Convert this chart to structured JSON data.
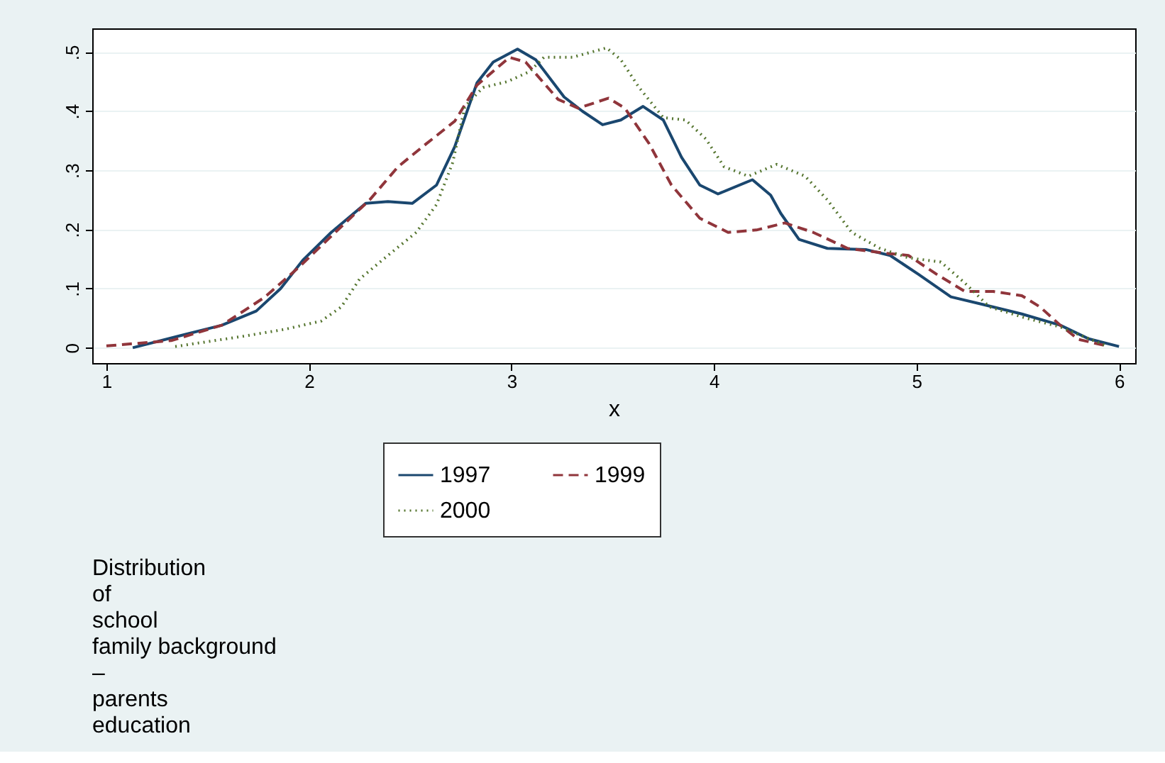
{
  "chart_data": {
    "type": "line",
    "xlabel": "x",
    "xlim": [
      0.93,
      6.08
    ],
    "ylim": [
      -0.026,
      0.54
    ],
    "xticks": [
      1,
      2,
      3,
      4,
      5,
      6
    ],
    "yticks": [
      0,
      {
        "value": 0.1,
        "label": ".1"
      },
      {
        "value": 0.2,
        "label": ".2"
      },
      {
        "value": 0.3,
        "label": ".3"
      },
      {
        "value": 0.4,
        "label": ".4"
      },
      {
        "value": 0.5,
        "label": ".5"
      }
    ],
    "grid": "y",
    "legend": "bottom",
    "marker": "none",
    "annotations": [
      "Distribution\nof\nschool\nfamily background\n–\nparents\neducation"
    ],
    "series": [
      {
        "name": "1997",
        "color": "#1a476f",
        "line_style": "solid",
        "x": [
          1.13,
          1.57,
          1.74,
          1.86,
          1.97,
          2.11,
          2.28,
          2.39,
          2.51,
          2.63,
          2.72,
          2.83,
          2.91,
          3.03,
          3.12,
          3.26,
          3.35,
          3.45,
          3.54,
          3.65,
          3.75,
          3.84,
          3.93,
          4.02,
          4.19,
          4.28,
          4.33,
          4.42,
          4.56,
          4.75,
          4.87,
          5.01,
          5.17,
          5.33,
          5.52,
          5.71,
          5.85,
          6.0
        ],
        "values": [
          0.0,
          0.038,
          0.062,
          0.1,
          0.148,
          0.195,
          0.244,
          0.247,
          0.244,
          0.275,
          0.34,
          0.448,
          0.483,
          0.505,
          0.487,
          0.424,
          0.4,
          0.377,
          0.385,
          0.408,
          0.385,
          0.322,
          0.275,
          0.26,
          0.284,
          0.258,
          0.227,
          0.183,
          0.168,
          0.166,
          0.156,
          0.124,
          0.086,
          0.073,
          0.057,
          0.038,
          0.015,
          0.002
        ]
      },
      {
        "name": "1999",
        "color": "#90353b",
        "line_style": "dashed",
        "x": [
          1.0,
          1.32,
          1.57,
          1.78,
          1.95,
          2.13,
          2.3,
          2.44,
          2.58,
          2.72,
          2.83,
          2.99,
          3.07,
          3.23,
          3.33,
          3.48,
          3.56,
          3.68,
          3.79,
          3.93,
          4.07,
          4.21,
          4.35,
          4.49,
          4.66,
          4.84,
          4.96,
          5.1,
          5.24,
          5.38,
          5.52,
          5.61,
          5.71,
          5.8,
          5.94
        ],
        "values": [
          0.003,
          0.012,
          0.038,
          0.085,
          0.136,
          0.195,
          0.25,
          0.306,
          0.345,
          0.383,
          0.444,
          0.491,
          0.483,
          0.42,
          0.405,
          0.422,
          0.405,
          0.345,
          0.275,
          0.219,
          0.195,
          0.199,
          0.211,
          0.195,
          0.168,
          0.16,
          0.156,
          0.124,
          0.095,
          0.095,
          0.088,
          0.069,
          0.038,
          0.014,
          0.003
        ]
      },
      {
        "name": "2000",
        "color": "#55752f",
        "line_style": "dotted",
        "x": [
          1.34,
          1.67,
          1.88,
          2.06,
          2.16,
          2.25,
          2.39,
          2.53,
          2.63,
          2.71,
          2.77,
          2.86,
          2.98,
          3.09,
          3.16,
          3.3,
          3.47,
          3.54,
          3.63,
          3.75,
          3.86,
          3.96,
          4.05,
          4.17,
          4.31,
          4.45,
          4.56,
          4.68,
          4.82,
          4.96,
          5.12,
          5.24,
          5.36,
          5.54,
          5.71,
          5.94
        ],
        "values": [
          0.002,
          0.019,
          0.031,
          0.045,
          0.069,
          0.116,
          0.156,
          0.195,
          0.242,
          0.313,
          0.408,
          0.44,
          0.45,
          0.467,
          0.491,
          0.491,
          0.507,
          0.487,
          0.44,
          0.389,
          0.385,
          0.353,
          0.306,
          0.29,
          0.31,
          0.29,
          0.25,
          0.195,
          0.168,
          0.152,
          0.145,
          0.109,
          0.069,
          0.05,
          0.035,
          0.003
        ]
      }
    ]
  }
}
